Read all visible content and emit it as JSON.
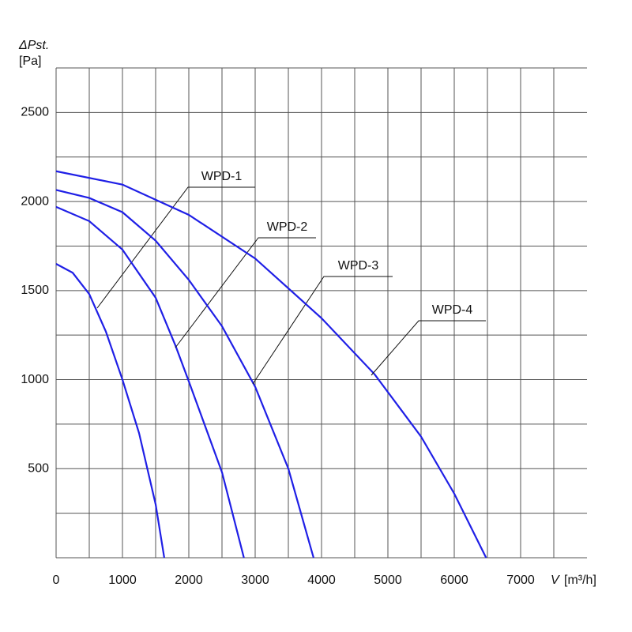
{
  "chart_data": {
    "type": "line",
    "ylabel": {
      "symbol": "ΔPst.",
      "unit": "[Pa]"
    },
    "xlabel": {
      "symbol": "V",
      "unit": "[m³/h]"
    },
    "xlim": [
      0,
      8000
    ],
    "ylim": [
      0,
      2750
    ],
    "xticks": [
      0,
      1000,
      2000,
      3000,
      4000,
      5000,
      6000,
      7000
    ],
    "yticks": [
      500,
      1000,
      1500,
      2000,
      2500
    ],
    "xminorticks": [
      500,
      1500,
      2500,
      3500,
      4500,
      5500,
      6500,
      7500
    ],
    "yminorticks": [
      250,
      750,
      1250,
      1750,
      2250,
      2750
    ],
    "grid": true,
    "series": [
      {
        "name": "WPD-1",
        "color": "#1f1fe6",
        "x": [
          0,
          250,
          500,
          750,
          1000,
          1250,
          1500,
          1630
        ],
        "values": [
          1650,
          1600,
          1480,
          1270,
          1000,
          700,
          300,
          0
        ]
      },
      {
        "name": "WPD-2",
        "color": "#1f1fe6",
        "x": [
          0,
          500,
          1000,
          1500,
          1800,
          2000,
          2500,
          2830
        ],
        "values": [
          1970,
          1890,
          1730,
          1460,
          1190,
          990,
          480,
          0
        ]
      },
      {
        "name": "WPD-3",
        "color": "#1f1fe6",
        "x": [
          0,
          500,
          1000,
          1500,
          2000,
          2500,
          3000,
          3500,
          3880
        ],
        "values": [
          2065,
          2020,
          1940,
          1780,
          1560,
          1300,
          960,
          500,
          0
        ]
      },
      {
        "name": "WPD-4",
        "color": "#1f1fe6",
        "x": [
          0,
          1000,
          2000,
          3000,
          4000,
          4800,
          5500,
          6000,
          6480
        ],
        "values": [
          2170,
          2095,
          1925,
          1680,
          1345,
          1030,
          680,
          360,
          0
        ]
      }
    ]
  }
}
